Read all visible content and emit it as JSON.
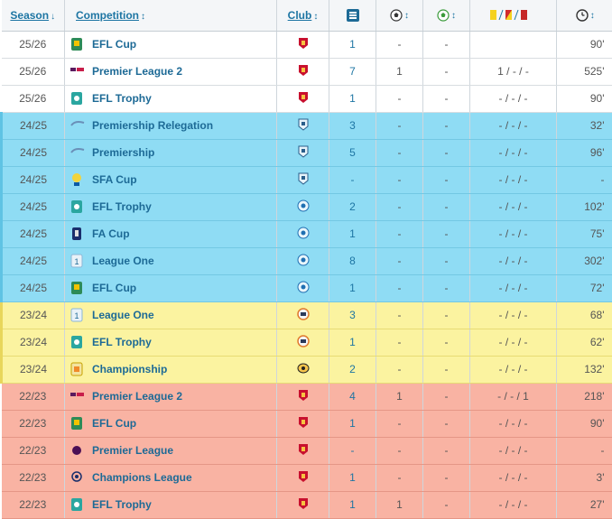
{
  "headers": {
    "season": "Season",
    "season_sort": "↓",
    "competition": "Competition",
    "competition_sort": "↕",
    "club": "Club",
    "club_sort": "↕",
    "apps_icon": "appearances-icon",
    "goals_icon": "goals-icon",
    "goals_sort": "↕",
    "assists_icon": "assists-icon",
    "assists_sort": "↕",
    "cards_icon": "cards-icon",
    "minutes_icon": "clock-icon",
    "minutes_sort": "↕"
  },
  "colors": {
    "white": "#ffffff",
    "blue": "#8fdcf4",
    "yellow": "#fbf3a0",
    "salmon": "#f9b3a3",
    "link": "#1d6a96"
  },
  "rows": [
    {
      "season": "25/26",
      "competition": "EFL Cup",
      "club": "liverpool-crest-icon",
      "apps": "1",
      "goals": "-",
      "assists": "-",
      "cards": "",
      "minutes": "90'",
      "tone": "white",
      "logo": "efl-cup-logo-icon"
    },
    {
      "season": "25/26",
      "competition": "Premier League 2",
      "club": "liverpool-crest-icon",
      "apps": "7",
      "goals": "1",
      "assists": "-",
      "cards": "1 / - / -",
      "minutes": "525'",
      "tone": "white",
      "logo": "premier-league-2-logo-icon"
    },
    {
      "season": "25/26",
      "competition": "EFL Trophy",
      "club": "liverpool-crest-icon",
      "apps": "1",
      "goals": "-",
      "assists": "-",
      "cards": "- / - / -",
      "minutes": "90'",
      "tone": "white",
      "logo": "efl-trophy-logo-icon"
    },
    {
      "season": "24/25",
      "competition": "Premiership Relegation",
      "club": "kilmarnock-crest-icon",
      "apps": "3",
      "goals": "-",
      "assists": "-",
      "cards": "- / - / -",
      "minutes": "32'",
      "tone": "blue",
      "logo": "premiership-logo-icon"
    },
    {
      "season": "24/25",
      "competition": "Premiership",
      "club": "kilmarnock-crest-icon",
      "apps": "5",
      "goals": "-",
      "assists": "-",
      "cards": "- / - / -",
      "minutes": "96'",
      "tone": "blue",
      "logo": "premiership-logo-icon"
    },
    {
      "season": "24/25",
      "competition": "SFA Cup",
      "club": "kilmarnock-crest-icon",
      "apps": "-",
      "goals": "-",
      "assists": "-",
      "cards": "- / - / -",
      "minutes": "-",
      "tone": "blue",
      "logo": "sfa-cup-logo-icon"
    },
    {
      "season": "24/25",
      "competition": "EFL Trophy",
      "club": "wigan-crest-icon",
      "apps": "2",
      "goals": "-",
      "assists": "-",
      "cards": "- / - / -",
      "minutes": "102'",
      "tone": "blue",
      "logo": "efl-trophy-logo-icon"
    },
    {
      "season": "24/25",
      "competition": "FA Cup",
      "club": "wigan-crest-icon",
      "apps": "1",
      "goals": "-",
      "assists": "-",
      "cards": "- / - / -",
      "minutes": "75'",
      "tone": "blue",
      "logo": "fa-cup-logo-icon"
    },
    {
      "season": "24/25",
      "competition": "League One",
      "club": "wigan-crest-icon",
      "apps": "8",
      "goals": "-",
      "assists": "-",
      "cards": "- / - / -",
      "minutes": "302'",
      "tone": "blue",
      "logo": "league-one-logo-icon"
    },
    {
      "season": "24/25",
      "competition": "EFL Cup",
      "club": "wigan-crest-icon",
      "apps": "1",
      "goals": "-",
      "assists": "-",
      "cards": "- / - / -",
      "minutes": "72'",
      "tone": "blue",
      "logo": "efl-cup-logo-icon"
    },
    {
      "season": "23/24",
      "competition": "League One",
      "club": "bolton-crest-icon",
      "apps": "3",
      "goals": "-",
      "assists": "-",
      "cards": "- / - / -",
      "minutes": "68'",
      "tone": "yellow",
      "logo": "league-one-logo-icon"
    },
    {
      "season": "23/24",
      "competition": "EFL Trophy",
      "club": "bolton-crest-icon",
      "apps": "1",
      "goals": "-",
      "assists": "-",
      "cards": "- / - / -",
      "minutes": "62'",
      "tone": "yellow",
      "logo": "efl-trophy-logo-icon"
    },
    {
      "season": "23/24",
      "competition": "Championship",
      "club": "hull-crest-icon",
      "apps": "2",
      "goals": "-",
      "assists": "-",
      "cards": "- / - / -",
      "minutes": "132'",
      "tone": "yellow",
      "logo": "championship-logo-icon"
    },
    {
      "season": "22/23",
      "competition": "Premier League 2",
      "club": "liverpool-crest-icon",
      "apps": "4",
      "goals": "1",
      "assists": "-",
      "cards": "- / - / 1",
      "minutes": "218'",
      "tone": "salmon",
      "logo": "premier-league-2-logo-icon"
    },
    {
      "season": "22/23",
      "competition": "EFL Cup",
      "club": "liverpool-crest-icon",
      "apps": "1",
      "goals": "-",
      "assists": "-",
      "cards": "- / - / -",
      "minutes": "90'",
      "tone": "salmon",
      "logo": "efl-cup-logo-icon"
    },
    {
      "season": "22/23",
      "competition": "Premier League",
      "club": "liverpool-crest-icon",
      "apps": "-",
      "goals": "-",
      "assists": "-",
      "cards": "- / - / -",
      "minutes": "-",
      "tone": "salmon",
      "logo": "premier-league-logo-icon"
    },
    {
      "season": "22/23",
      "competition": "Champions League",
      "club": "liverpool-crest-icon",
      "apps": "1",
      "goals": "-",
      "assists": "-",
      "cards": "- / - / -",
      "minutes": "3'",
      "tone": "salmon",
      "logo": "champions-league-logo-icon"
    },
    {
      "season": "22/23",
      "competition": "EFL Trophy",
      "club": "liverpool-crest-icon",
      "apps": "1",
      "goals": "1",
      "assists": "-",
      "cards": "- / - / -",
      "minutes": "27'",
      "tone": "salmon",
      "logo": "efl-trophy-logo-icon"
    }
  ]
}
